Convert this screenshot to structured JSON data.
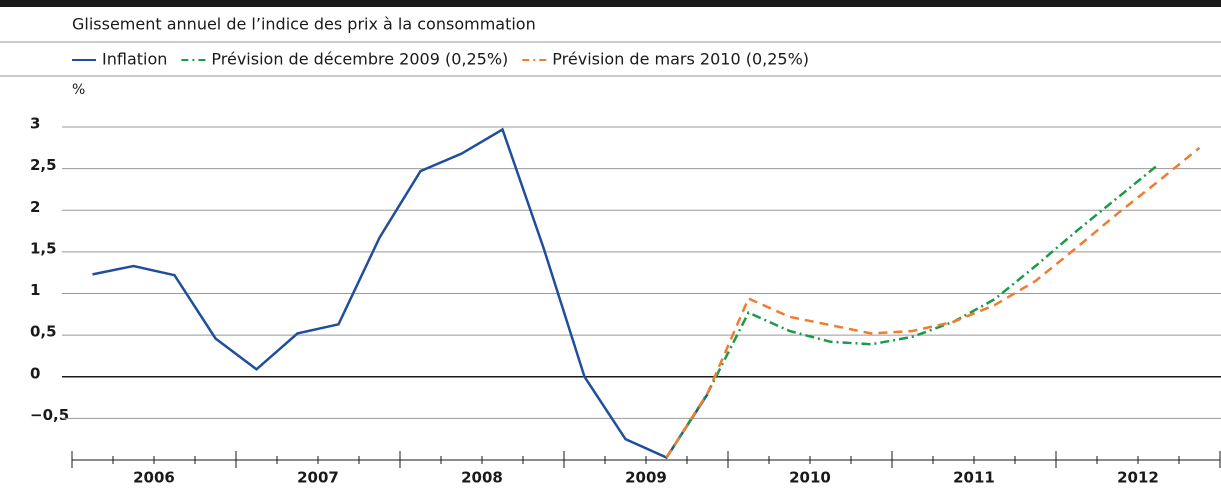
{
  "chart_data": {
    "type": "line",
    "title": "Glissement annuel de l’indice des prix à la consommation",
    "y_unit": "%",
    "x": [
      2006.125,
      2006.375,
      2006.625,
      2006.875,
      2007.125,
      2007.375,
      2007.625,
      2007.875,
      2008.125,
      2008.375,
      2008.625,
      2008.875,
      2009.125,
      2009.375,
      2009.625,
      2009.875,
      2010.125,
      2010.375,
      2010.625,
      2010.875,
      2011.125,
      2011.375,
      2011.625,
      2011.875,
      2012.125,
      2012.375,
      2012.625,
      2012.875
    ],
    "series": [
      {
        "name": "Inflation",
        "color": "#1f4e9c",
        "dash": "none",
        "values": [
          1.23,
          1.33,
          1.22,
          0.46,
          0.09,
          0.52,
          0.63,
          1.67,
          2.47,
          2.68,
          2.97,
          1.55,
          0.0,
          -0.75,
          -0.97,
          -0.21,
          null,
          null,
          null,
          null,
          null,
          null,
          null,
          null,
          null,
          null,
          null,
          null
        ]
      },
      {
        "name": "Prévision de décembre 2009 (0,25%)",
        "color": "#1a9a4a",
        "dash": "9,4,2,4",
        "values": [
          null,
          null,
          null,
          null,
          null,
          null,
          null,
          null,
          null,
          null,
          null,
          null,
          null,
          null,
          -0.97,
          -0.2,
          0.77,
          0.55,
          0.42,
          0.39,
          0.48,
          0.66,
          0.93,
          1.33,
          1.75,
          2.15,
          2.55,
          null
        ]
      },
      {
        "name": "Prévision de mars 2010 (0,25%)",
        "color": "#f07c30",
        "dash": "9,6",
        "values": [
          null,
          null,
          null,
          null,
          null,
          null,
          null,
          null,
          null,
          null,
          null,
          null,
          null,
          null,
          -0.97,
          -0.2,
          0.94,
          0.72,
          0.62,
          0.52,
          0.55,
          0.66,
          0.86,
          1.15,
          1.55,
          1.96,
          2.35,
          2.75
        ]
      }
    ],
    "categories": [
      "2006",
      "2007",
      "2008",
      "2009",
      "2010",
      "2011",
      "2012"
    ],
    "xlim": [
      2006,
      2013
    ],
    "xticks": [
      2006,
      2007,
      2008,
      2009,
      2010,
      2011,
      2012,
      2013
    ],
    "ylim": [
      -1,
      3
    ],
    "yticks": [
      {
        "value": -0.5,
        "label": "−0,5"
      },
      0,
      {
        "value": 0.5,
        "label": "0,5"
      },
      1,
      {
        "value": 1.5,
        "label": "1,5"
      },
      2,
      {
        "value": 2.5,
        "label": "2,5"
      },
      3
    ],
    "grid": true
  }
}
